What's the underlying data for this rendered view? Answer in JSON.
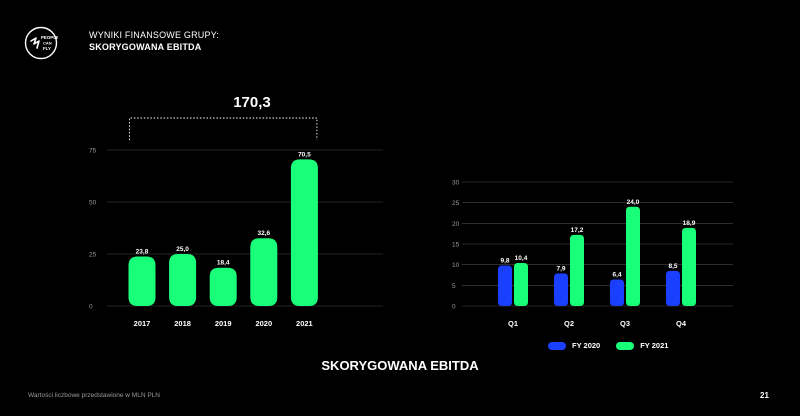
{
  "header": {
    "line1": "WYNIKI FINANSOWE GRUPY:",
    "line2": "SKORYGOWANA EBITDA"
  },
  "logo": {
    "icon": "people-can-fly-logo",
    "text": "PEOPLE CAN FLY"
  },
  "sum_label": "170,3",
  "bottom_title": "SKORYGOWANA EBITDA",
  "footnote": "Wartości liczbowe przedstawione w MLN PLN",
  "page_number": "21",
  "colors": {
    "green": "#1aff7a",
    "blue": "#1a3fff",
    "grid": "#4a4a4a"
  },
  "chart_data": [
    {
      "type": "bar",
      "categories": [
        "2017",
        "2018",
        "2019",
        "2020",
        "2021"
      ],
      "values": [
        23.8,
        25.0,
        18.4,
        32.6,
        70.5
      ],
      "value_labels": [
        "23,8",
        "25,0",
        "18,4",
        "32,6",
        "70,5"
      ],
      "yticks": [
        "0",
        "25",
        "50",
        "75"
      ],
      "ylim": [
        0,
        75
      ],
      "grid": true,
      "bracket_over": [
        "2017",
        "2021"
      ]
    },
    {
      "type": "bar",
      "categories": [
        "Q1",
        "Q2",
        "Q3",
        "Q4"
      ],
      "series": [
        {
          "name": "FY 2020",
          "color": "#1a3fff",
          "values": [
            9.8,
            7.9,
            6.4,
            8.5
          ],
          "value_labels": [
            "9,8",
            "7,9",
            "6,4",
            "8,5"
          ]
        },
        {
          "name": "FY 2021",
          "color": "#1aff7a",
          "values": [
            10.4,
            17.2,
            24.0,
            18.9
          ],
          "value_labels": [
            "10,4",
            "17,2",
            "24,0",
            "18,9"
          ]
        }
      ],
      "yticks": [
        "0",
        "5",
        "10",
        "15",
        "20",
        "25",
        "30"
      ],
      "ylim": [
        0,
        30
      ],
      "grid": true,
      "legend": "bottom"
    }
  ]
}
